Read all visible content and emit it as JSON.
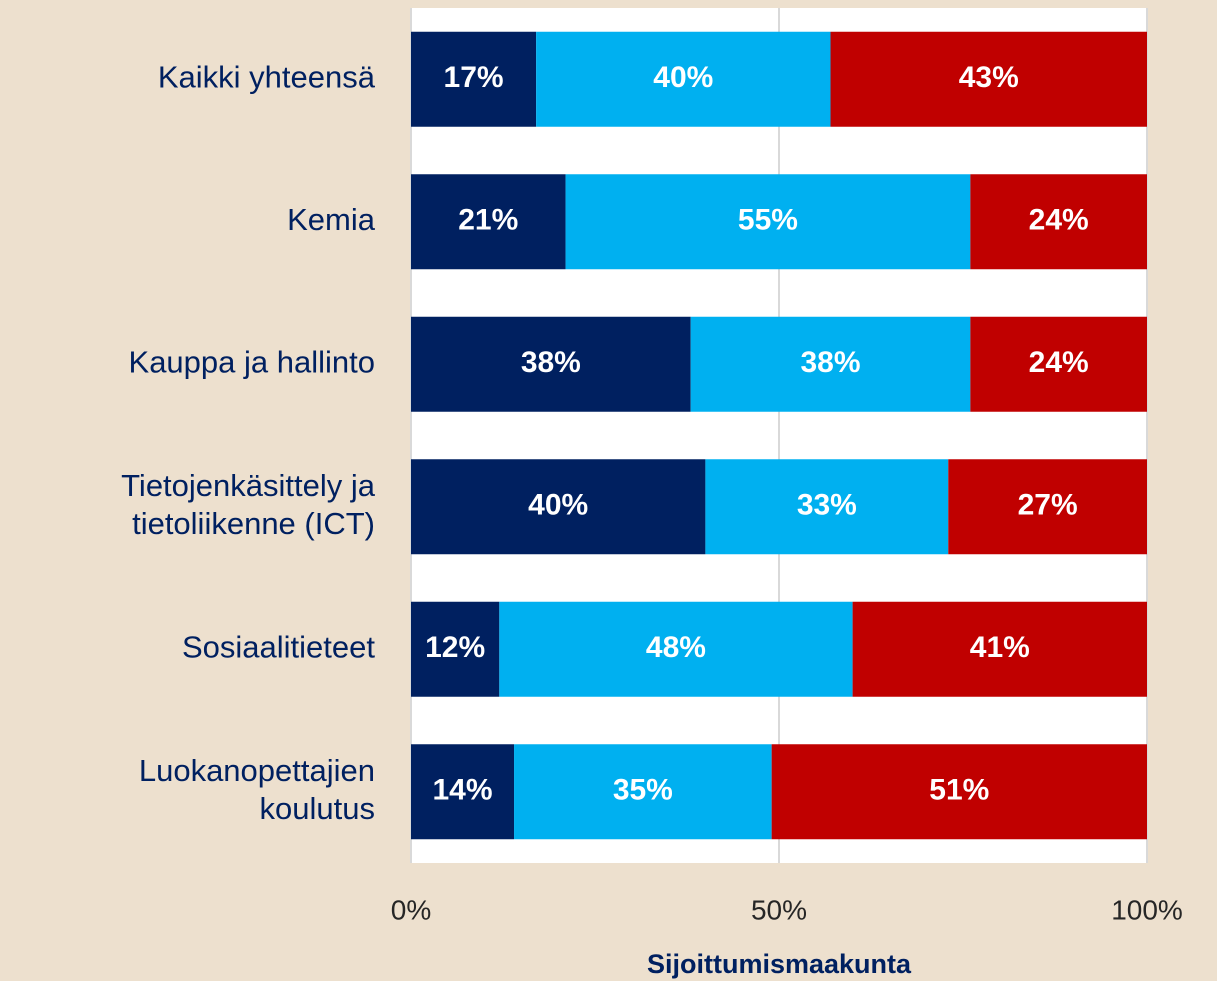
{
  "chart_data": {
    "type": "stacked_barh",
    "categories": [
      [
        "Kaikki yhteensä"
      ],
      [
        "Kemia"
      ],
      [
        "Kauppa ja hallinto"
      ],
      [
        "Tietojenkäsittely ja",
        "tietoliikenne (ICT)"
      ],
      [
        "Sosiaalitieteet"
      ],
      [
        "Luokanopettajien",
        "koulutus"
      ]
    ],
    "series": [
      {
        "color": "#002060",
        "values": [
          17,
          21,
          38,
          40,
          12,
          14
        ],
        "value_labels": [
          "17%",
          "21%",
          "38%",
          "40%",
          "12%",
          "14%"
        ]
      },
      {
        "color": "#00B0F0",
        "values": [
          40,
          55,
          38,
          33,
          48,
          35
        ],
        "value_labels": [
          "40%",
          "55%",
          "38%",
          "33%",
          "48%",
          "35%"
        ]
      },
      {
        "color": "#C00000",
        "values": [
          43,
          24,
          24,
          27,
          41,
          51
        ],
        "value_labels": [
          "43%",
          "24%",
          "24%",
          "27%",
          "41%",
          "51%"
        ]
      }
    ],
    "xlabel": "Sijoittumismaakunta",
    "xlim": [
      0,
      100
    ],
    "xticks": [
      {
        "value": 0,
        "label": "0%"
      },
      {
        "value": 50,
        "label": "50%"
      },
      {
        "value": 100,
        "label": "100%"
      }
    ],
    "grid": true
  }
}
